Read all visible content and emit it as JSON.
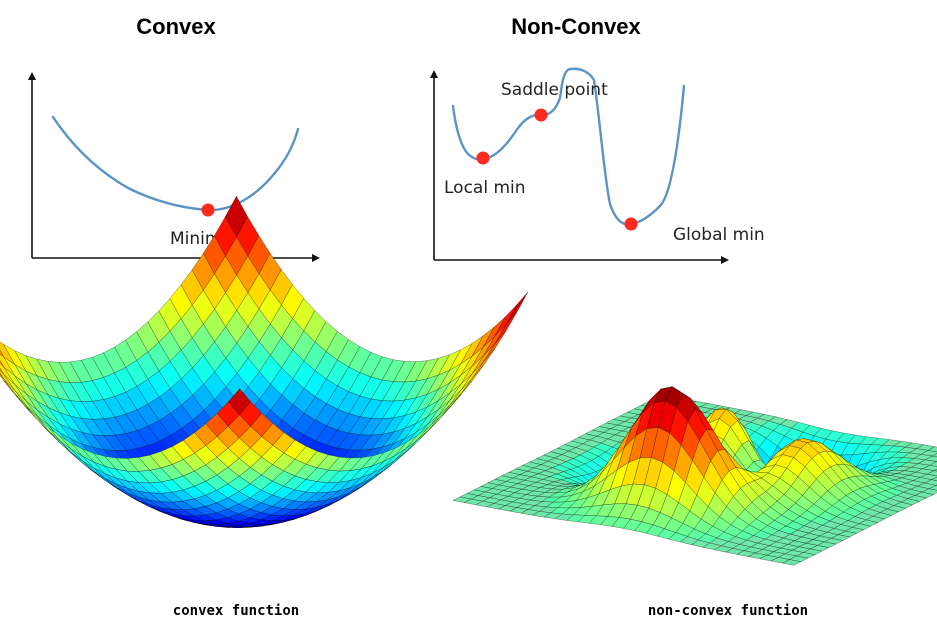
{
  "panels": {
    "convex": {
      "title": "Convex",
      "minimizer_label": "Minimizer",
      "caption": "convex function"
    },
    "nonconvex": {
      "title": "Non-Convex",
      "saddle_label": "Saddle point",
      "local_min_label": "Local min",
      "global_min_label": "Global min",
      "caption": "non-convex function"
    }
  },
  "colors": {
    "curve": "#5b93c4",
    "marker": "#ff2a1f",
    "axis": "#111111",
    "plane": "#6ee7a8"
  }
}
